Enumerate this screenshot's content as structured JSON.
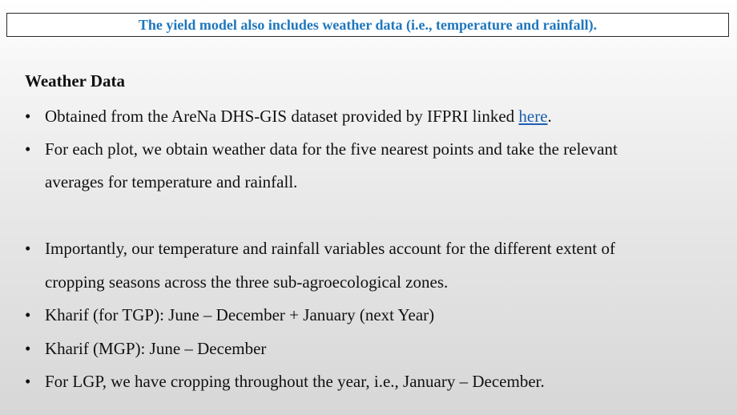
{
  "banner": {
    "text": "The yield model also includes weather data (i.e., temperature and rainfall)."
  },
  "heading": "Weather Data",
  "bullets": [
    {
      "text_before_link": "Obtained from the AreNa DHS-GIS dataset provided by IFPRI linked ",
      "link_text": "here",
      "text_after_link": "."
    },
    {
      "line1": "For each plot, we obtain weather data for the five nearest points and take the relevant",
      "line2": "averages for temperature and rainfall."
    },
    {
      "line1": "Importantly, our temperature and rainfall variables account for the different  extent of",
      "line2": "cropping seasons across the three sub-agroecological zones."
    },
    {
      "line1": "Kharif (for TGP): June – December + January (next Year)"
    },
    {
      "line1": "Kharif (MGP): June – December"
    },
    {
      "line1": "For LGP, we have cropping throughout the year, i.e., January – December."
    }
  ],
  "bullet_symbol": "•",
  "colors": {
    "banner_text": "#1f77bd",
    "link": "#1a5fb4"
  }
}
